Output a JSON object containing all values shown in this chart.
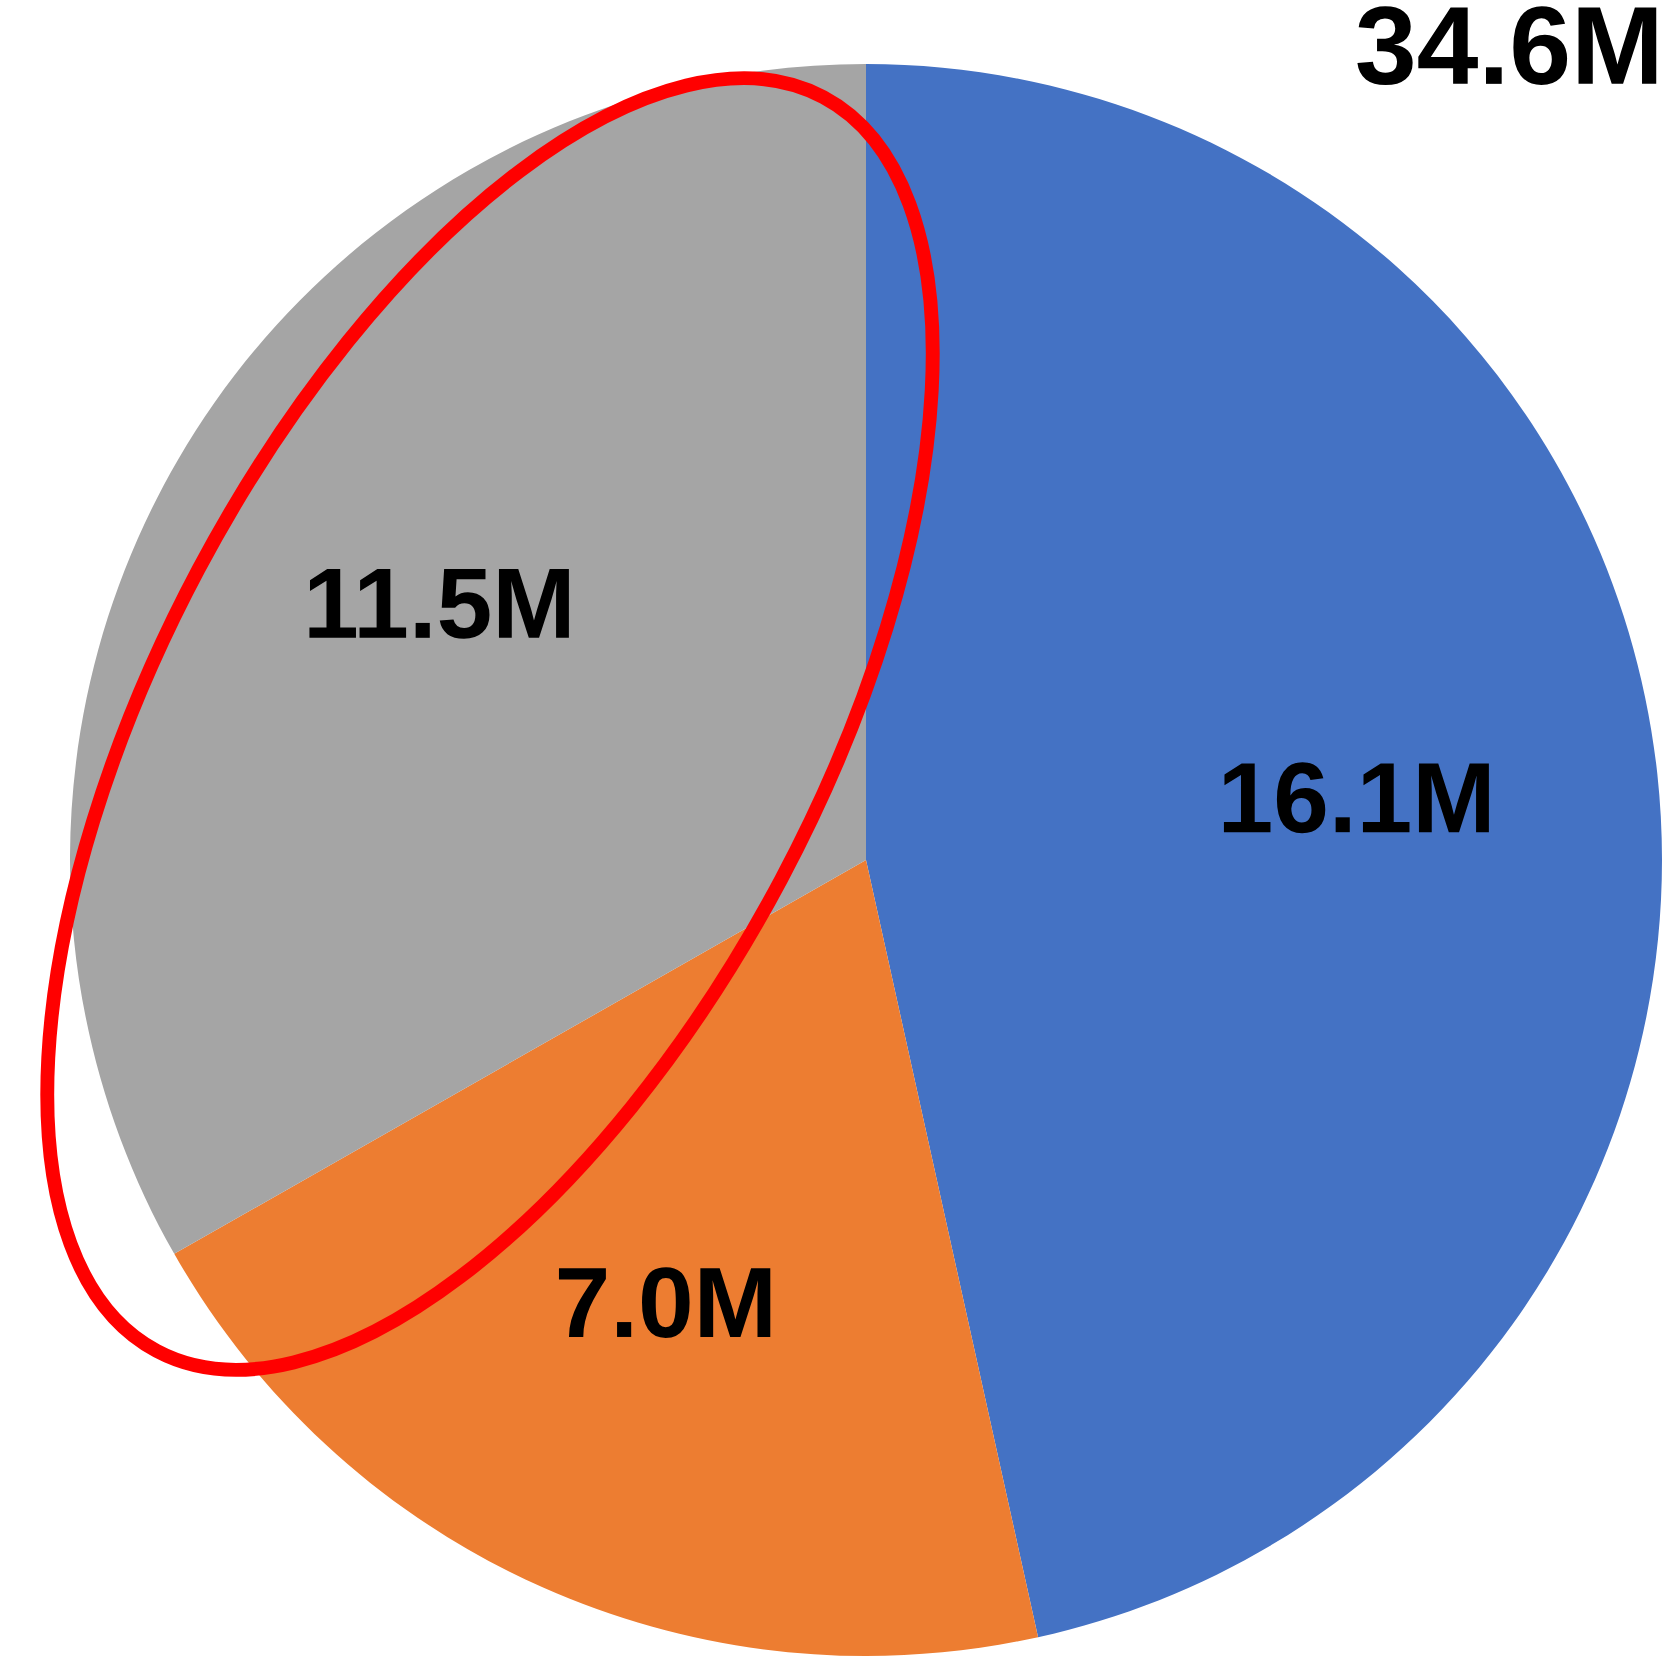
{
  "chart_data": {
    "type": "pie",
    "categories": [
      null,
      null,
      null
    ],
    "values": [
      16.1,
      7.0,
      11.5
    ],
    "colors": [
      "#4472c4",
      "#ed7d31",
      "#a5a5a5"
    ],
    "value_labels": [
      "16.1M",
      "7.0M",
      "11.5M"
    ],
    "annotations": [
      "34.6M"
    ]
  }
}
